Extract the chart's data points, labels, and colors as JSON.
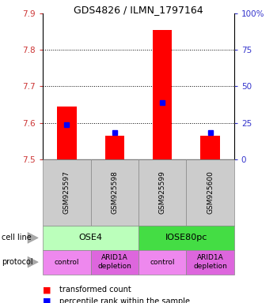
{
  "title": "GDS4826 / ILMN_1797164",
  "samples": [
    "GSM925597",
    "GSM925598",
    "GSM925599",
    "GSM925600"
  ],
  "red_values": [
    7.645,
    7.565,
    7.855,
    7.565
  ],
  "blue_values": [
    7.595,
    7.572,
    7.655,
    7.572
  ],
  "ylim_left": [
    7.5,
    7.9
  ],
  "ylim_right": [
    0,
    100
  ],
  "yticks_left": [
    7.5,
    7.6,
    7.7,
    7.8,
    7.9
  ],
  "yticks_right": [
    0,
    25,
    50,
    75,
    100
  ],
  "ytick_labels_right": [
    "0",
    "25",
    "50",
    "75",
    "100%"
  ],
  "grid_values": [
    7.6,
    7.7,
    7.8
  ],
  "cell_line_groups": [
    {
      "label": "OSE4",
      "span": [
        0,
        2
      ],
      "color": "#bbffbb"
    },
    {
      "label": "IOSE80pc",
      "span": [
        2,
        4
      ],
      "color": "#44dd44"
    }
  ],
  "protocol_groups": [
    {
      "label": "control",
      "span": [
        0,
        1
      ],
      "color": "#ee88ee"
    },
    {
      "label": "ARID1A\ndepletion",
      "span": [
        1,
        2
      ],
      "color": "#dd66dd"
    },
    {
      "label": "control",
      "span": [
        2,
        3
      ],
      "color": "#ee88ee"
    },
    {
      "label": "ARID1A\ndepletion",
      "span": [
        3,
        4
      ],
      "color": "#dd66dd"
    }
  ],
  "bar_base": 7.5,
  "bar_width": 0.4,
  "blue_marker_size": 5,
  "left_tick_color": "#cc3333",
  "right_tick_color": "#3333cc",
  "sample_box_color": "#cccccc",
  "legend_red_label": "transformed count",
  "legend_blue_label": "percentile rank within the sample",
  "cell_line_label": "cell line",
  "protocol_label": "protocol"
}
